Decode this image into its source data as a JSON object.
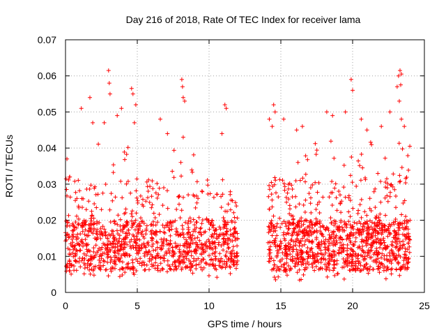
{
  "chart_data": {
    "type": "scatter",
    "title": "Day 216 of 2018, Rate Of TEC Index for receiver lama",
    "xlabel": "GPS time / hours",
    "ylabel": "ROTI / TECUs",
    "xlim": [
      0,
      25
    ],
    "ylim": [
      0,
      0.07
    ],
    "xticks": [
      0,
      5,
      10,
      15,
      20,
      25
    ],
    "xtick_labels": [
      "0",
      "5",
      "10",
      "15",
      "20",
      "25"
    ],
    "yticks": [
      0,
      0.01,
      0.02,
      0.03,
      0.04,
      0.05,
      0.06,
      0.07
    ],
    "ytick_labels": [
      "0",
      "0.01",
      "0.02",
      "0.03",
      "0.04",
      "0.05",
      "0.06",
      "0.07"
    ],
    "grid": true,
    "marker": "+",
    "color": "#ff0000",
    "series": [
      {
        "name": "ROTI",
        "segments": [
          {
            "t_start": 0.0,
            "t_end": 12.0,
            "baseline_range": [
              0.004,
              0.03
            ]
          },
          {
            "t_start": 14.1,
            "t_end": 24.0,
            "baseline_range": [
              0.003,
              0.035
            ]
          }
        ],
        "notable_points": [
          {
            "x": 0.1,
            "y": 0.037
          },
          {
            "x": 0.3,
            "y": 0.032
          },
          {
            "x": 1.1,
            "y": 0.051
          },
          {
            "x": 1.7,
            "y": 0.054
          },
          {
            "x": 1.9,
            "y": 0.047
          },
          {
            "x": 2.7,
            "y": 0.047
          },
          {
            "x": 3.0,
            "y": 0.0615
          },
          {
            "x": 3.05,
            "y": 0.058
          },
          {
            "x": 3.1,
            "y": 0.055
          },
          {
            "x": 3.6,
            "y": 0.049
          },
          {
            "x": 3.9,
            "y": 0.051
          },
          {
            "x": 4.6,
            "y": 0.0565
          },
          {
            "x": 4.7,
            "y": 0.055
          },
          {
            "x": 4.9,
            "y": 0.052
          },
          {
            "x": 4.8,
            "y": 0.047
          },
          {
            "x": 6.6,
            "y": 0.048
          },
          {
            "x": 7.1,
            "y": 0.044
          },
          {
            "x": 8.1,
            "y": 0.059
          },
          {
            "x": 8.15,
            "y": 0.057
          },
          {
            "x": 8.2,
            "y": 0.054
          },
          {
            "x": 8.3,
            "y": 0.053
          },
          {
            "x": 8.2,
            "y": 0.043
          },
          {
            "x": 11.1,
            "y": 0.052
          },
          {
            "x": 11.2,
            "y": 0.051
          },
          {
            "x": 10.9,
            "y": 0.044
          },
          {
            "x": 14.5,
            "y": 0.052
          },
          {
            "x": 14.6,
            "y": 0.05
          },
          {
            "x": 14.2,
            "y": 0.048
          },
          {
            "x": 14.4,
            "y": 0.046
          },
          {
            "x": 15.2,
            "y": 0.048
          },
          {
            "x": 16.1,
            "y": 0.045
          },
          {
            "x": 16.5,
            "y": 0.046
          },
          {
            "x": 18.2,
            "y": 0.05
          },
          {
            "x": 18.6,
            "y": 0.049
          },
          {
            "x": 19.5,
            "y": 0.05
          },
          {
            "x": 19.9,
            "y": 0.059
          },
          {
            "x": 20.0,
            "y": 0.056
          },
          {
            "x": 20.6,
            "y": 0.048
          },
          {
            "x": 21.0,
            "y": 0.045
          },
          {
            "x": 22.0,
            "y": 0.046
          },
          {
            "x": 22.6,
            "y": 0.05
          },
          {
            "x": 23.1,
            "y": 0.057
          },
          {
            "x": 23.2,
            "y": 0.06
          },
          {
            "x": 23.3,
            "y": 0.0615
          },
          {
            "x": 23.4,
            "y": 0.0605
          },
          {
            "x": 23.35,
            "y": 0.0575
          },
          {
            "x": 23.25,
            "y": 0.053
          },
          {
            "x": 23.4,
            "y": 0.048
          },
          {
            "x": 23.6,
            "y": 0.046
          }
        ],
        "min_observed": 0.003,
        "max_observed": 0.0615
      }
    ]
  }
}
